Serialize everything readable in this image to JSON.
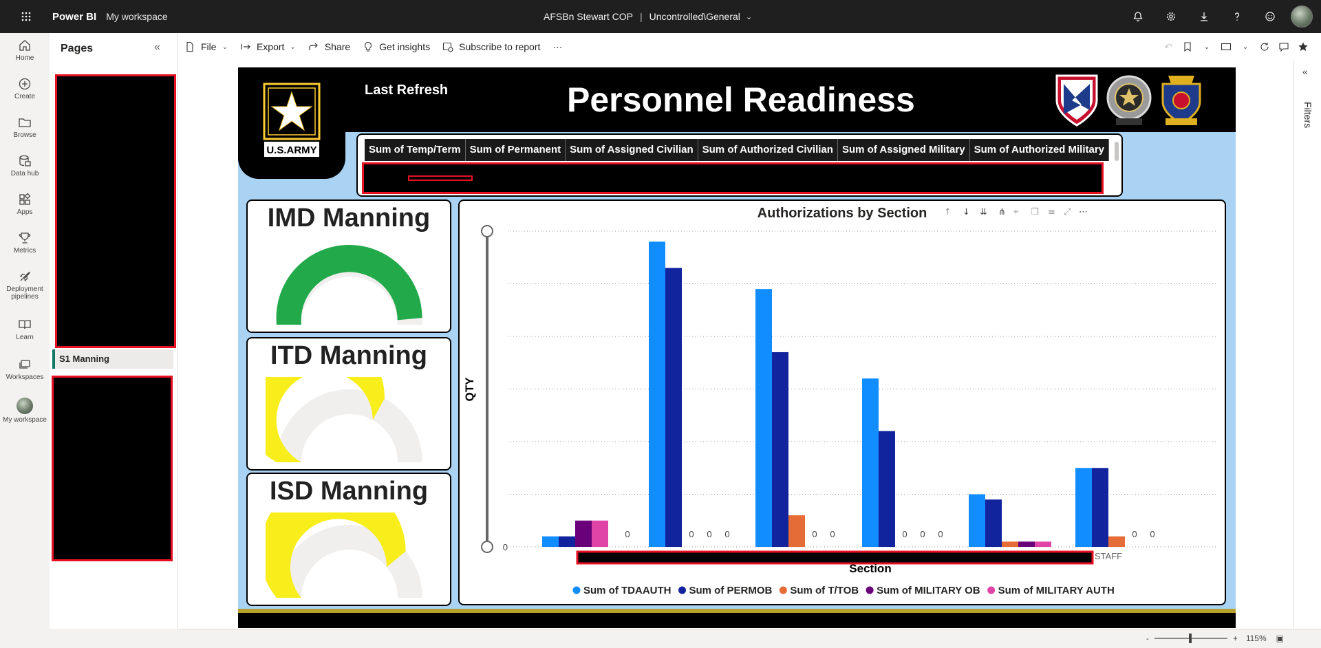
{
  "topbar": {
    "brand": "Power BI",
    "workspace": "My workspace",
    "report_name": "AFSBn Stewart COP",
    "separator": "|",
    "sensitivity": "Uncontrolled\\General"
  },
  "leftnav": [
    {
      "label": "Home",
      "icon": "home-icon"
    },
    {
      "label": "Create",
      "icon": "create-icon"
    },
    {
      "label": "Browse",
      "icon": "browse-icon"
    },
    {
      "label": "Data hub",
      "icon": "data-hub-icon"
    },
    {
      "label": "Apps",
      "icon": "apps-icon"
    },
    {
      "label": "Metrics",
      "icon": "metrics-icon"
    },
    {
      "label": "Deployment pipelines",
      "icon": "pipelines-icon"
    },
    {
      "label": "Learn",
      "icon": "learn-icon"
    },
    {
      "label": "Workspaces",
      "icon": "workspaces-icon"
    },
    {
      "label": "My workspace",
      "icon": "my-workspace-avatar"
    }
  ],
  "pages_panel": {
    "title": "Pages",
    "pages": [
      "S1 Manning"
    ]
  },
  "toolbar": {
    "file": "File",
    "export": "Export",
    "share": "Share",
    "insights": "Get insights",
    "subscribe": "Subscribe to report",
    "more": "···"
  },
  "filters": {
    "label": "Filters"
  },
  "report": {
    "last_refresh_label": "Last Refresh",
    "title": "Personnel Readiness",
    "army_logo_text": "U.S.ARMY",
    "summary_columns": [
      "Sum of Temp/Term",
      "Sum of Permanent",
      "Sum of Assigned Civilian",
      "Sum of Authorized Civilian",
      "Sum of Assigned Military",
      "Sum of Authorized Military"
    ],
    "gauges": [
      {
        "title": "IMD Manning",
        "value_fraction": 0.97,
        "color": "#22aa4a"
      },
      {
        "title": "ITD Manning",
        "value_fraction": 0.66,
        "color": "#f7ee1c"
      },
      {
        "title": "ISD Manning",
        "value_fraction": 0.78,
        "color": "#f7ee1c"
      }
    ]
  },
  "chart_data": {
    "type": "bar",
    "title": "Authorizations by Section",
    "xlabel": "Section",
    "ylabel": "QTY",
    "y_tick_label": "0",
    "categories": [
      "",
      "",
      "",
      "",
      "",
      "STAFF"
    ],
    "series": [
      {
        "name": "Sum of TDAAUTH",
        "color": "#118dff",
        "values": [
          2,
          58,
          49,
          32,
          10,
          15
        ]
      },
      {
        "name": "Sum of PERMOB",
        "color": "#12239e",
        "values": [
          2,
          53,
          37,
          22,
          9,
          15
        ]
      },
      {
        "name": "Sum of T/TOB",
        "color": "#e66c37",
        "values": [
          0,
          0,
          6,
          0,
          1,
          2
        ]
      },
      {
        "name": "Sum of MILITARY OB",
        "color": "#6b007b",
        "values": [
          5,
          0,
          0,
          0,
          1,
          0
        ]
      },
      {
        "name": "Sum of MILITARY AUTH",
        "color": "#e044a7",
        "values": [
          5,
          0,
          0,
          0,
          1,
          0
        ]
      }
    ],
    "data_labels": [
      [
        "",
        "0"
      ],
      [
        "0",
        "0",
        "0"
      ],
      [
        "0",
        "0"
      ],
      [
        "0",
        "0",
        "0"
      ],
      [],
      [
        "0",
        "0"
      ]
    ],
    "ylim": [
      0,
      60
    ],
    "grid": true,
    "legend_position": "bottom"
  },
  "statusbar": {
    "zoom": "115%",
    "minus": "-",
    "plus": "+"
  }
}
